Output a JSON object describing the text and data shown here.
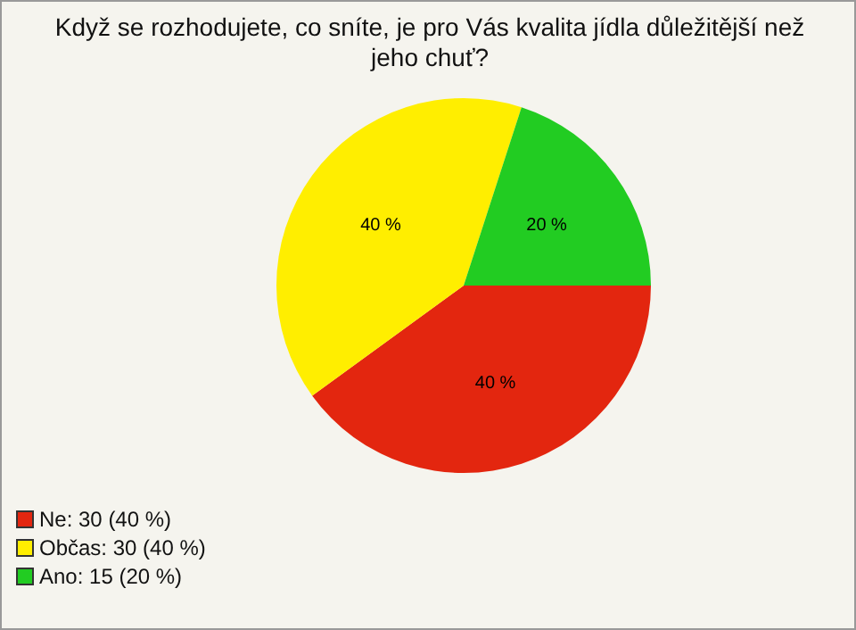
{
  "chart_data": {
    "type": "pie",
    "title": "Když se rozhodujete, co sníte, je pro Vás kvalita jídla důležitější než jeho chuť?",
    "categories": [
      "Ne: 30 (40 %)",
      "Občas: 30 (40 %)",
      "Ano: 15 (20 %)"
    ],
    "values": [
      40,
      40,
      20
    ],
    "colors": [
      "#e3260f",
      "#ffee00",
      "#22cc22"
    ],
    "value_labels": [
      "40 %",
      "40 %",
      "20 %"
    ],
    "legend": "bottom left"
  }
}
